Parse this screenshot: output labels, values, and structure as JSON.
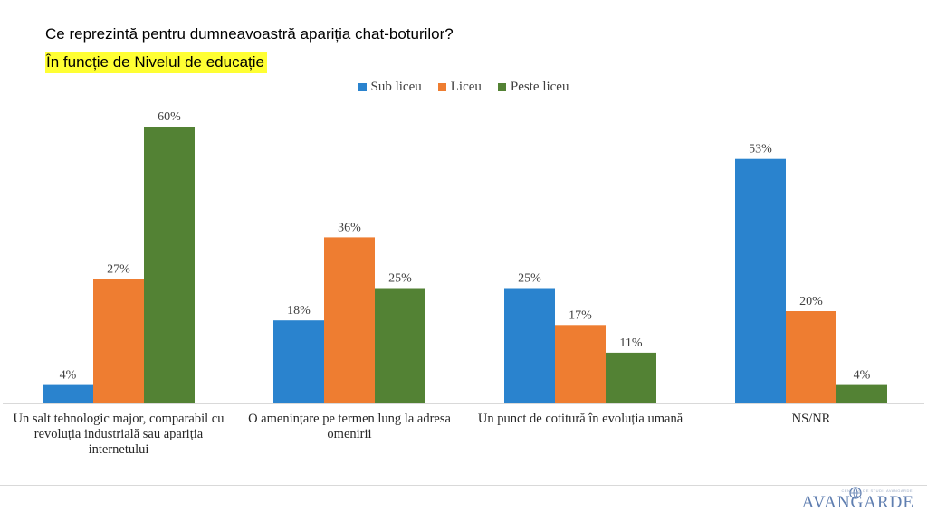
{
  "header": {
    "title": "Ce reprezintă pentru dumneavoastră apariția chat-boturilor?",
    "subtitle": "În funcție de Nivelul de educație"
  },
  "colors": {
    "sub_liceu": "#2a83ce",
    "liceu": "#ee7d31",
    "peste_liceu": "#538234"
  },
  "chart_data": {
    "type": "bar",
    "title": "Ce reprezintă pentru dumneavoastră apariția chat-boturilor?",
    "subtitle": "În funcție de Nivelul de educație",
    "categories": [
      "Un salt tehnologic major, comparabil cu revoluția industrială sau apariția internetului",
      "O amenințare pe termen lung la adresa omenirii",
      "Un punct de cotitură în evoluția umană",
      "NS/NR"
    ],
    "category_lines": [
      [
        "Un salt tehnologic major, comparabil cu",
        "revoluția industrială sau apariția",
        "internetului"
      ],
      [
        "O amenințare pe termen lung la adresa",
        "omenirii"
      ],
      [
        "Un punct de cotitură în evoluția umană"
      ],
      [
        "NS/NR"
      ]
    ],
    "series": [
      {
        "name": "Sub liceu",
        "values": [
          4,
          18,
          25,
          53
        ],
        "labels": [
          "4%",
          "18%",
          "25%",
          "53%"
        ]
      },
      {
        "name": "Liceu",
        "values": [
          27,
          36,
          17,
          20
        ],
        "labels": [
          "27%",
          "36%",
          "17%",
          "20%"
        ]
      },
      {
        "name": "Peste liceu",
        "values": [
          60,
          25,
          11,
          4
        ],
        "labels": [
          "60%",
          "25%",
          "11%",
          "4%"
        ]
      }
    ],
    "unit": "%",
    "ylim": [
      0,
      60
    ],
    "grid": false,
    "legend": "top-center",
    "xlabel": "",
    "ylabel": ""
  },
  "footer": {
    "logo_text": "AVANGARDE",
    "logo_tagline": "CENTRUL DE STUDII AVANGARDE"
  }
}
